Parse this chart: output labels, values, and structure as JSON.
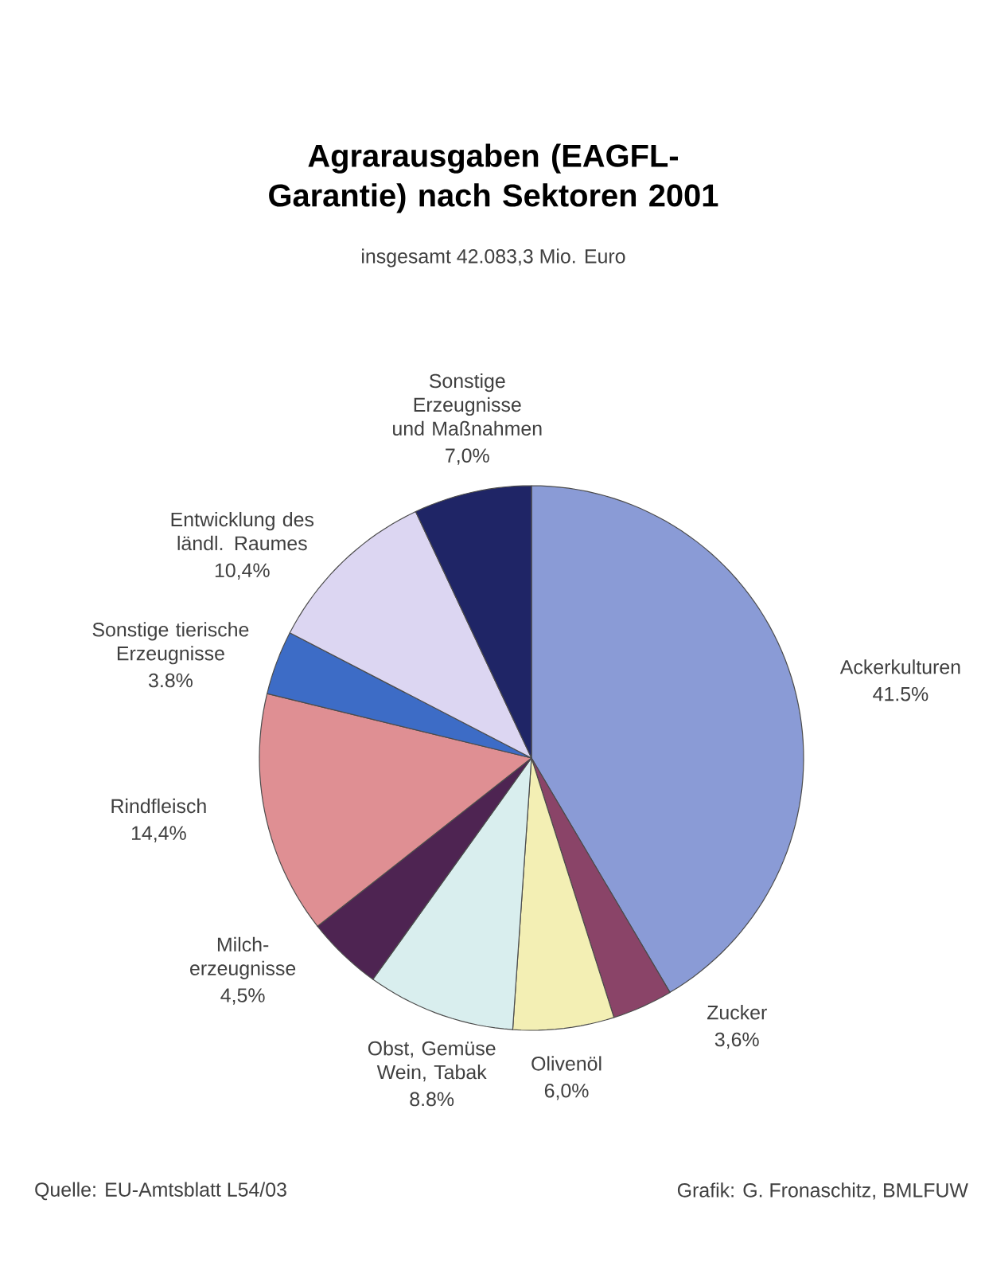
{
  "chart_data": {
    "type": "pie",
    "title": "Agrarausgaben (EAGFL- Garantie) nach Sektoren 2001",
    "subtitle": "insgesamt 42.083,3 Mio. Euro",
    "categories": [
      "Ackerkulturen",
      "Zucker",
      "Olivenöl",
      "Obst, Gemüse Wein, Tabak",
      "Milch- erzeugnisse",
      "Rindfleisch",
      "Sonstige tierische Erzeugnisse",
      "Entwicklung des ländl. Raumes",
      "Sonstige Erzeugnisse und Maßnahmen"
    ],
    "values": [
      41.5,
      3.6,
      6.0,
      8.8,
      4.5,
      14.4,
      3.8,
      10.4,
      7.0
    ],
    "value_labels": [
      "41.5%",
      "3,6%",
      "6,0%",
      "8.8%",
      "4,5%",
      "14,4%",
      "3.8%",
      "10,4%",
      "7,0%"
    ],
    "colors": [
      "#8a9bd6",
      "#8a4468",
      "#f3efb4",
      "#d9eeee",
      "#4e2452",
      "#df8f93",
      "#3d6cc6",
      "#dcd6f2",
      "#1f2566"
    ],
    "annotations": [
      "Quelle: EU-Amtsblatt L54/03",
      "Grafik: G. Fronaschitz, BMLFUW"
    ]
  }
}
